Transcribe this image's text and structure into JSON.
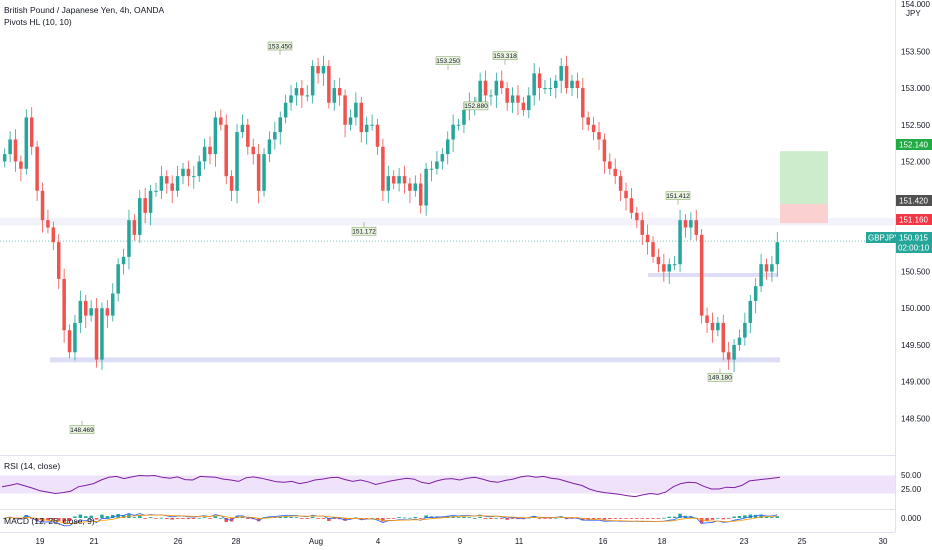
{
  "header": {
    "symbol_title": "British Pound / Japanese Yen, 4h, OANDA",
    "indicator_label": "Pivots HL (10, 10)"
  },
  "rsi_panel": {
    "label": "RSI (14, close)",
    "ticks": [
      "50.00",
      "25.00"
    ]
  },
  "macd_panel": {
    "label": "MACD (12, 26, close, 9)",
    "ticks": [
      "0.000"
    ]
  },
  "price_axis": {
    "top_label": "154.000",
    "currency": "JPY",
    "ticks": [
      "153.500",
      "153.000",
      "152.500",
      "152.000",
      "151.500",
      "151.000",
      "150.500",
      "150.000",
      "149.500",
      "149.000",
      "148.500"
    ]
  },
  "time_axis": {
    "labels": [
      "19",
      "21",
      "26",
      "28",
      "Aug",
      "4",
      "9",
      "11",
      "16",
      "18",
      "23",
      "25",
      "30"
    ]
  },
  "price_tags": {
    "target": "152.140",
    "entry": "151.420",
    "stop": "151.160",
    "symbol": "GBPJPY",
    "last_price": "150.915",
    "countdown": "02:00:10"
  },
  "pivot_labels": [
    "153.450",
    "153.250",
    "153.318",
    "152.880",
    "151.172",
    "151.412",
    "148.469",
    "149.180"
  ],
  "colors": {
    "up": "#26a69a",
    "down": "#ef5350",
    "rsi_line": "#7e1fa3",
    "rsi_band": "#efe2fb",
    "zone": "#d9d9f4",
    "target_fill": "#cdeccb",
    "stop_fill": "#fbd0d0",
    "macd_line": "#2962ff",
    "signal_line": "#ff9800"
  },
  "chart_data": {
    "type": "candlestick",
    "title": "British Pound / Japanese Yen, 4h, OANDA",
    "ylim": [
      148.0,
      154.2
    ],
    "x_ticks": [
      "19",
      "21",
      "26",
      "28",
      "Aug",
      "4",
      "9",
      "11",
      "16",
      "18",
      "23",
      "25",
      "30"
    ],
    "price_series": [
      152.1,
      152.3,
      152.0,
      151.9,
      152.6,
      152.2,
      151.6,
      151.2,
      151.1,
      150.9,
      150.4,
      149.7,
      149.4,
      149.8,
      150.1,
      149.9,
      150.0,
      149.3,
      150.0,
      149.9,
      150.2,
      150.6,
      150.7,
      151.2,
      151.0,
      151.5,
      151.3,
      151.6,
      151.6,
      151.8,
      151.7,
      151.6,
      151.8,
      151.9,
      151.8,
      151.8,
      152.0,
      152.2,
      152.1,
      152.6,
      152.5,
      151.8,
      151.6,
      152.4,
      152.5,
      152.2,
      152.1,
      151.6,
      152.1,
      152.3,
      152.4,
      152.6,
      152.8,
      152.9,
      153.0,
      152.9,
      152.9,
      153.3,
      153.2,
      153.3,
      152.8,
      153.0,
      152.9,
      152.5,
      152.6,
      152.8,
      152.4,
      152.5,
      152.5,
      152.2,
      151.6,
      151.8,
      151.7,
      151.8,
      151.7,
      151.6,
      151.7,
      151.4,
      151.9,
      151.9,
      152.0,
      152.1,
      152.3,
      152.5,
      152.5,
      152.7,
      152.8,
      152.8,
      153.1,
      152.9,
      152.9,
      153.1,
      153.0,
      152.8,
      152.9,
      152.8,
      152.7,
      152.9,
      153.2,
      153.0,
      153.0,
      153.0,
      153.1,
      153.3,
      153.0,
      153.1,
      153.0,
      152.6,
      152.5,
      152.4,
      152.3,
      152.0,
      151.9,
      151.8,
      151.6,
      151.5,
      151.3,
      151.2,
      151.0,
      150.9,
      150.7,
      150.6,
      150.5,
      150.6,
      150.6,
      151.2,
      151.1,
      151.2,
      151.0,
      149.9,
      149.8,
      149.7,
      149.8,
      149.4,
      149.3,
      149.5,
      149.6,
      149.8,
      150.1,
      150.3,
      150.6,
      150.5,
      150.6,
      150.9
    ],
    "pivots": [
      {
        "label": "153.450",
        "value": 153.45
      },
      {
        "label": "153.250",
        "value": 153.25
      },
      {
        "label": "153.318",
        "value": 153.318
      },
      {
        "label": "152.880",
        "value": 152.88
      },
      {
        "label": "151.172",
        "value": 151.172
      },
      {
        "label": "151.412",
        "value": 151.412
      },
      {
        "label": "148.469",
        "value": 148.469
      },
      {
        "label": "149.180",
        "value": 149.18
      }
    ],
    "zones": [
      [
        151.13,
        151.23
      ],
      [
        150.43,
        150.48
      ],
      [
        149.29,
        149.33
      ]
    ],
    "position": {
      "target": 152.14,
      "entry": 151.42,
      "stop": 151.16
    },
    "last_price": 150.915,
    "rsi_range": [
      0,
      100
    ],
    "rsi_band": [
      30,
      70
    ],
    "rsi_series": [
      45,
      48,
      52,
      47,
      42,
      36,
      33,
      30,
      32,
      35,
      45,
      48,
      52,
      60,
      66,
      68,
      63,
      67,
      70,
      69,
      70,
      66,
      64,
      67,
      61,
      60,
      68,
      67,
      66,
      62,
      60,
      57,
      65,
      67,
      64,
      60,
      56,
      55,
      57,
      52,
      55,
      60,
      62,
      65,
      66,
      61,
      57,
      60,
      56,
      50,
      54,
      58,
      61,
      64,
      62,
      55,
      52,
      58,
      62,
      63,
      60,
      64,
      66,
      62,
      57,
      55,
      59,
      62,
      67,
      69,
      66,
      68,
      64,
      62,
      57,
      52,
      48,
      40,
      35,
      32,
      30,
      28,
      25,
      23,
      27,
      30,
      28,
      33,
      45,
      52,
      55,
      54,
      46,
      40,
      40,
      44,
      43,
      48,
      58,
      60,
      62,
      64,
      66
    ]
  }
}
